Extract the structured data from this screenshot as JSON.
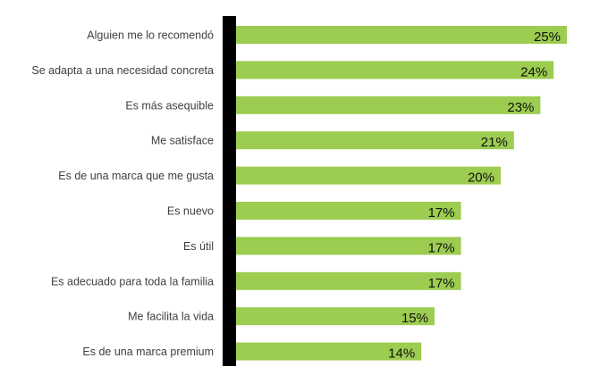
{
  "chart_data": {
    "type": "bar",
    "orientation": "horizontal",
    "title": "",
    "xlabel": "",
    "ylabel": "",
    "xlim": [
      0,
      25
    ],
    "grid": false,
    "legend": "none",
    "categories": [
      "Alguien me lo recomendó",
      "Se adapta a una necesidad concreta",
      "Es más asequible",
      "Me satisface",
      "Es de una marca que me gusta",
      "Es nuevo",
      "Es útil",
      "Es adecuado para toda la familia",
      "Me facilita la vida",
      "Es de una marca premium"
    ],
    "values": [
      25,
      24,
      23,
      21,
      20,
      17,
      17,
      17,
      15,
      14
    ],
    "data_labels": [
      "25%",
      "24%",
      "23%",
      "21%",
      "20%",
      "17%",
      "17%",
      "17%",
      "15%",
      "14%"
    ],
    "colors": {
      "bar": "#9ccc50",
      "axis": "#000000",
      "label": "#404040",
      "value": "#111111"
    }
  }
}
